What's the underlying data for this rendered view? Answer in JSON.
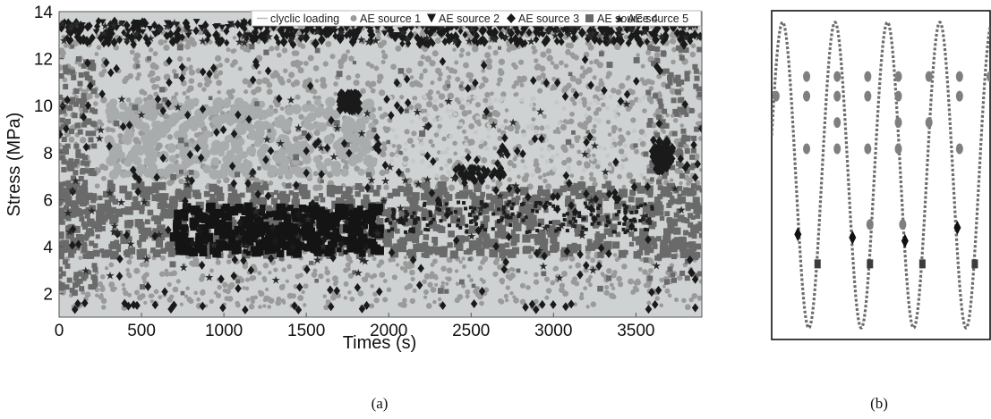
{
  "captions": {
    "a": "(a)",
    "b": "(b)"
  },
  "colors": {
    "cyclic_loading": "#b8b8b8",
    "source_1": "#9a9a9a",
    "source_2": "#1a1a1a",
    "source_3": "#1a1a1a",
    "source_4": "#6a6a6a",
    "source_5": "#2a2a2a",
    "background_cloud": "#cfd2d3"
  },
  "chart_data": [
    {
      "type": "scatter",
      "panel": "a",
      "xlabel": "Times (s)",
      "ylabel": "Stress (MPa)",
      "xlim": [
        0,
        3900
      ],
      "ylim": [
        1,
        14
      ],
      "xticks": [
        "0",
        "500",
        "1000",
        "1500",
        "2000",
        "2500",
        "3000",
        "3500"
      ],
      "xtick_values": [
        0,
        500,
        1000,
        1500,
        2000,
        2500,
        3000,
        3500
      ],
      "yticks": [
        "2",
        "4",
        "6",
        "8",
        "10",
        "12",
        "14"
      ],
      "ytick_values": [
        2,
        4,
        6,
        8,
        10,
        12,
        14
      ],
      "grid": false,
      "legend_position": "top",
      "legend": [
        {
          "label": "clyclic loading",
          "marker": "line"
        },
        {
          "label": "AE source 1",
          "marker": "circle"
        },
        {
          "label": "AE source 2",
          "marker": "triangle-down"
        },
        {
          "label": "AE source 3",
          "marker": "diamond"
        },
        {
          "label": "AE source 4",
          "marker": "square"
        },
        {
          "label": "AE source 5",
          "marker": "star"
        }
      ],
      "regions": [
        {
          "series": "AE source 4",
          "x": [
            0,
            3900
          ],
          "y": [
            3.5,
            6.5
          ]
        },
        {
          "series": "AE source 3",
          "x": [
            600,
            1950
          ],
          "y": [
            3.8,
            5.8
          ]
        },
        {
          "series": "AE source 1",
          "x": [
            0,
            3900
          ],
          "y": [
            6.5,
            13.5
          ]
        }
      ]
    },
    {
      "type": "line",
      "panel": "b",
      "series": [
        {
          "marker": "line",
          "values": []
        },
        {
          "marker": "circle",
          "points": [
            [
              0.02,
              0.74
            ],
            [
              0.16,
              0.8
            ],
            [
              0.16,
              0.74
            ],
            [
              0.3,
              0.8
            ],
            [
              0.3,
              0.74
            ],
            [
              0.3,
              0.66
            ],
            [
              0.3,
              0.58
            ],
            [
              0.16,
              0.58
            ],
            [
              0.44,
              0.8
            ],
            [
              0.44,
              0.74
            ],
            [
              0.44,
              0.58
            ],
            [
              0.58,
              0.8
            ],
            [
              0.58,
              0.74
            ],
            [
              0.58,
              0.66
            ],
            [
              0.58,
              0.58
            ],
            [
              0.72,
              0.8
            ],
            [
              0.72,
              0.66
            ],
            [
              0.86,
              0.8
            ],
            [
              0.86,
              0.74
            ],
            [
              0.86,
              0.58
            ],
            [
              1.0,
              0.8
            ],
            [
              0.6,
              0.35
            ],
            [
              0.45,
              0.35
            ]
          ]
        },
        {
          "marker": "diamond",
          "points": [
            [
              0.12,
              0.32
            ],
            [
              0.37,
              0.31
            ],
            [
              0.61,
              0.3
            ],
            [
              0.85,
              0.34
            ]
          ]
        },
        {
          "marker": "square",
          "points": [
            [
              0.21,
              0.23
            ],
            [
              0.45,
              0.23
            ],
            [
              0.69,
              0.23
            ],
            [
              0.93,
              0.23
            ]
          ]
        }
      ]
    }
  ]
}
